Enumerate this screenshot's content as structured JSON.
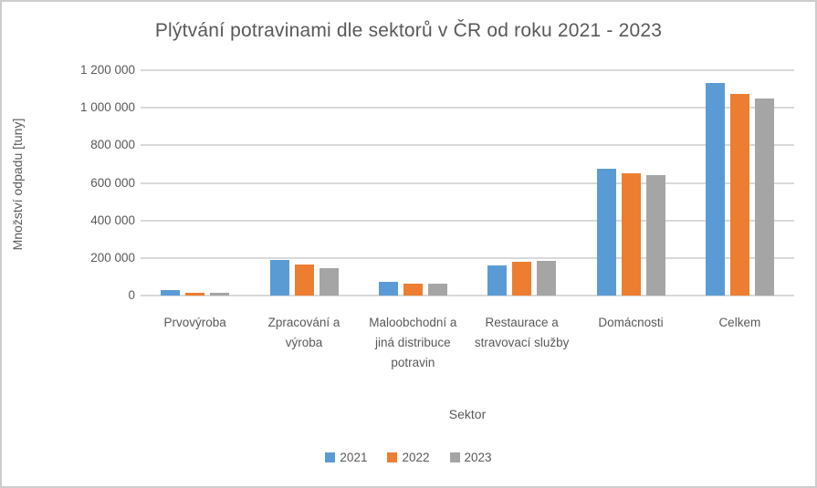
{
  "window": {
    "background": "#FFFFFF",
    "border_color": "#CDCDCD"
  },
  "chart_data": {
    "type": "bar",
    "title": "Plýtvání potravinami dle sektorů v ČR od roku 2021 - 2023",
    "xlabel": "Sektor",
    "ylabel": "Množství odpadu [tuny]",
    "ylim": [
      0,
      1200000
    ],
    "ytick_step": 200000,
    "ytick_labels_top_to_bottom": [
      "1 200 000",
      "1 000 000",
      "800 000",
      "600 000",
      "400 000",
      "200 000",
      "0"
    ],
    "grid": "horizontal",
    "gridline_color": "#D9D9D9",
    "text_color": "#595959",
    "legend_position": "bottom",
    "categories": [
      "Prvovýroba",
      "Zpracování a výroba",
      "Maloobchodní a jiná distribuce potravin",
      "Restaurace a stravovací služby",
      "Domácnosti",
      "Celkem"
    ],
    "series": [
      {
        "name": "2021",
        "color": "#5B9BD5",
        "values": [
          30000,
          190000,
          75000,
          160000,
          675000,
          1130000
        ]
      },
      {
        "name": "2022",
        "color": "#ED7D31",
        "values": [
          15000,
          165000,
          65000,
          180000,
          650000,
          1075000
        ]
      },
      {
        "name": "2023",
        "color": "#A5A5A5",
        "values": [
          13000,
          147000,
          65000,
          185000,
          640000,
          1050000
        ]
      }
    ]
  }
}
